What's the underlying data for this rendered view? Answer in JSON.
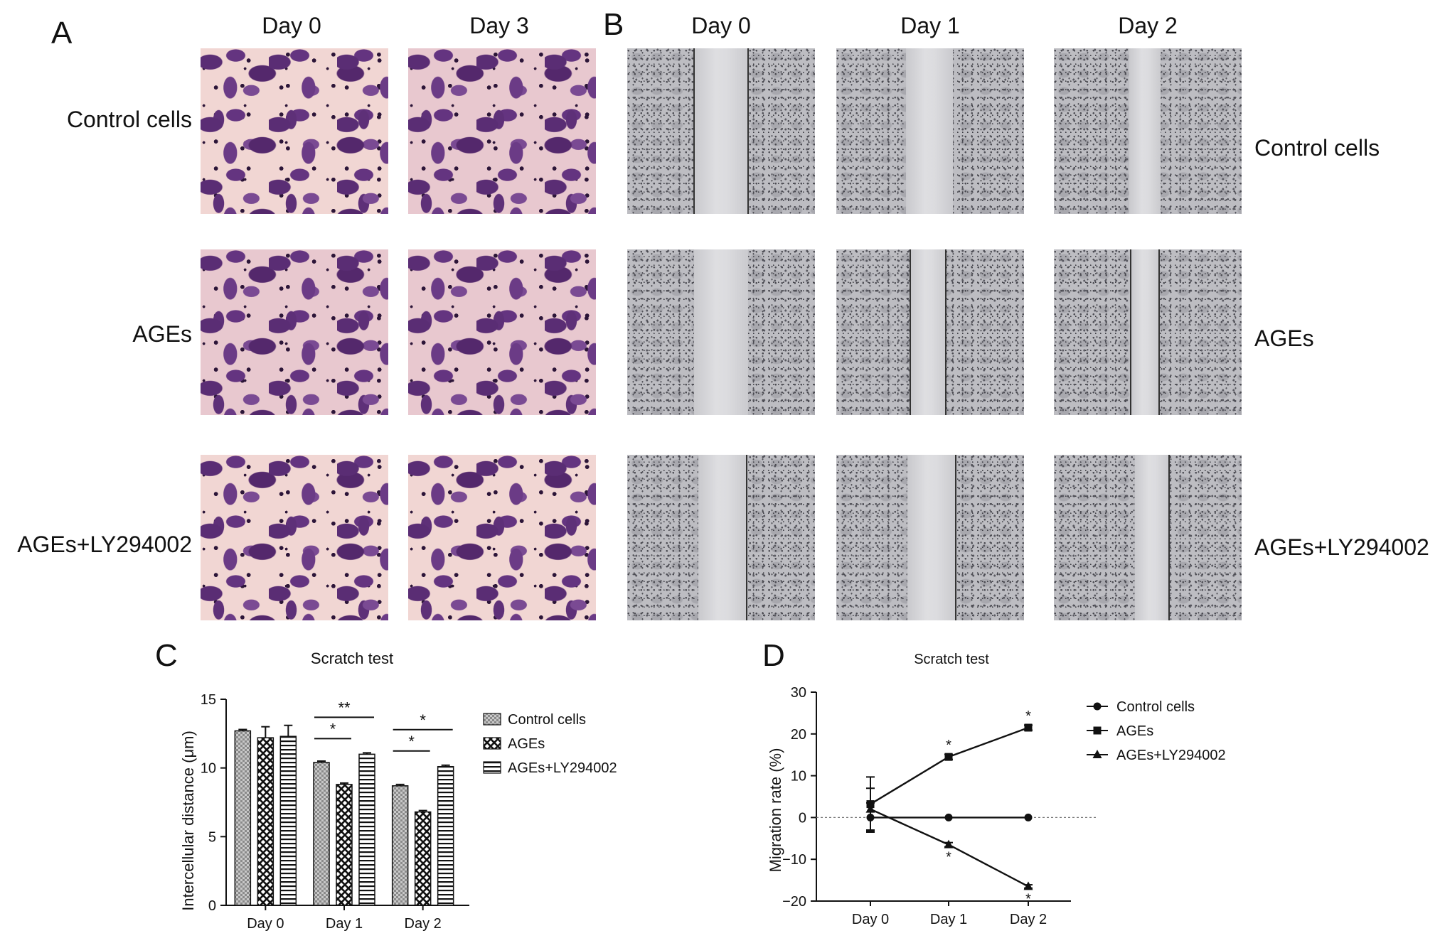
{
  "panel_a": {
    "letter": "A",
    "columns": [
      "Day 0",
      "Day 3"
    ],
    "rows": [
      "Control cells",
      "AGEs",
      "AGEs+LY294002"
    ]
  },
  "panel_b": {
    "letter": "B",
    "columns": [
      "Day 0",
      "Day 1",
      "Day 2"
    ],
    "rows": [
      "Control cells",
      "AGEs",
      "AGEs+LY294002"
    ]
  },
  "panel_c": {
    "letter": "C"
  },
  "panel_d": {
    "letter": "D"
  },
  "colors": {
    "purple_stain": "#5a2d74",
    "grey_field": "#bdbdc2",
    "ink": "#111111"
  },
  "chart_data": [
    {
      "type": "bar",
      "title": "Scratch test",
      "ylabel": "Intercellular distance (μm)",
      "xlabel": "",
      "categories": [
        "Day 0",
        "Day 1",
        "Day 2"
      ],
      "series": [
        {
          "name": "Control cells",
          "values": [
            12.7,
            10.4,
            8.7
          ],
          "errors": [
            0.1,
            0.1,
            0.1
          ]
        },
        {
          "name": "AGEs",
          "values": [
            12.2,
            8.8,
            6.8
          ],
          "errors": [
            0.8,
            0.1,
            0.1
          ]
        },
        {
          "name": "AGEs+LY294002",
          "values": [
            12.3,
            11.0,
            10.1
          ],
          "errors": [
            0.8,
            0.1,
            0.1
          ]
        }
      ],
      "ylim": [
        0,
        15
      ],
      "yticks": [
        "0",
        "5",
        "10",
        "15"
      ],
      "significance": [
        {
          "category": "Day 1",
          "from": 0,
          "to": 1,
          "label": "*"
        },
        {
          "category": "Day 1",
          "from": 0,
          "to": 2,
          "label": "**"
        },
        {
          "category": "Day 2",
          "from": 0,
          "to": 1,
          "label": "*"
        },
        {
          "category": "Day 2",
          "from": 0,
          "to": 2,
          "label": "*"
        }
      ],
      "legend": "right",
      "grid": false
    },
    {
      "type": "line",
      "title": "Scratch test",
      "ylabel": "Migration rate (%)",
      "xlabel": "",
      "categories": [
        "Day 0",
        "Day 1",
        "Day 2"
      ],
      "series": [
        {
          "name": "Control cells",
          "marker": "circle",
          "values": [
            0,
            0,
            0
          ],
          "errors": [
            3.5,
            0,
            0
          ],
          "stars": [
            "",
            "",
            ""
          ]
        },
        {
          "name": "AGEs",
          "marker": "square",
          "values": [
            3.2,
            14.5,
            21.5
          ],
          "errors": [
            6.5,
            0.6,
            0.6
          ],
          "stars": [
            "",
            "*",
            "*"
          ]
        },
        {
          "name": "AGEs+LY294002",
          "marker": "triangle",
          "values": [
            2.0,
            -6.5,
            -16.5
          ],
          "errors": [
            5.0,
            0.5,
            0.4
          ],
          "stars": [
            "",
            "*",
            "*"
          ]
        }
      ],
      "ylim": [
        -20,
        30
      ],
      "yticks": [
        "-20",
        "-10",
        "0",
        "10",
        "20",
        "30"
      ],
      "reference_line": 0,
      "legend": "right",
      "grid": false
    }
  ]
}
